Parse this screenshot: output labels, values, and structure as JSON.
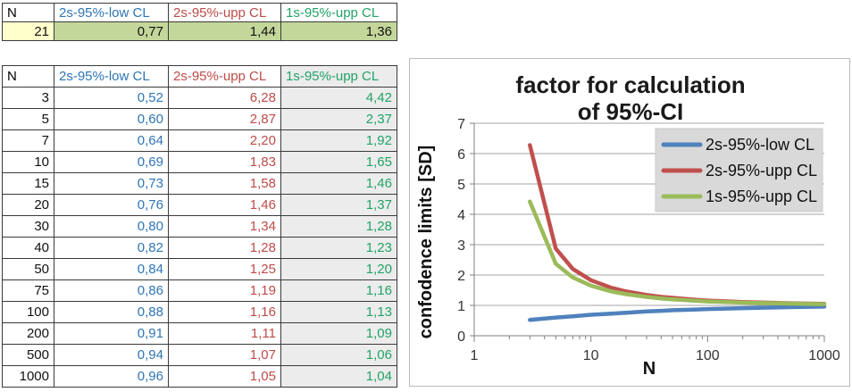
{
  "colors": {
    "blue_text": "#2E75B6",
    "red_text": "#BE4B48",
    "green_text": "#21A366",
    "yellow_cell": "#FFFFCC",
    "olive_cell": "#C4D79B",
    "gray_cell": "#ECECEC",
    "legend_bg": "#D9D9D9",
    "gridline": "#A6A6A6",
    "axis": "#808080"
  },
  "top_table": {
    "headers": [
      "N",
      "2s-95%-low CL",
      "2s-95%-upp CL",
      "1s-95%-upp CL"
    ],
    "row": [
      "21",
      "0,77",
      "1,44",
      "1,36"
    ]
  },
  "main_table": {
    "headers": [
      "N",
      "2s-95%-low CL",
      "2s-95%-upp CL",
      "1s-95%-upp CL"
    ],
    "rows": [
      [
        "3",
        "0,52",
        "6,28",
        "4,42"
      ],
      [
        "5",
        "0,60",
        "2,87",
        "2,37"
      ],
      [
        "7",
        "0,64",
        "2,20",
        "1,92"
      ],
      [
        "10",
        "0,69",
        "1,83",
        "1,65"
      ],
      [
        "15",
        "0,73",
        "1,58",
        "1,46"
      ],
      [
        "20",
        "0,76",
        "1,46",
        "1,37"
      ],
      [
        "30",
        "0,80",
        "1,34",
        "1,28"
      ],
      [
        "40",
        "0,82",
        "1,28",
        "1,23"
      ],
      [
        "50",
        "0,84",
        "1,25",
        "1,20"
      ],
      [
        "75",
        "0,86",
        "1,19",
        "1,16"
      ],
      [
        "100",
        "0,88",
        "1,16",
        "1,13"
      ],
      [
        "200",
        "0,91",
        "1,11",
        "1,09"
      ],
      [
        "500",
        "0,94",
        "1,07",
        "1,06"
      ],
      [
        "1000",
        "0,96",
        "1,05",
        "1,04"
      ]
    ]
  },
  "chart_data": {
    "type": "line",
    "title_line1": "factor for calculation",
    "title_line2": "of 95%-CI",
    "xlabel": "N",
    "ylabel": "confodence limits [SD]",
    "x_scale": "log",
    "xlim": [
      1,
      1000
    ],
    "ylim": [
      0,
      7
    ],
    "x_ticks": [
      1,
      10,
      100,
      1000
    ],
    "y_ticks": [
      0,
      1,
      2,
      3,
      4,
      5,
      6,
      7
    ],
    "grid": true,
    "legend_position": "upper right",
    "x": [
      3,
      5,
      7,
      10,
      15,
      20,
      30,
      40,
      50,
      75,
      100,
      200,
      500,
      1000
    ],
    "series": [
      {
        "name": "2s-95%-low CL",
        "color": "#4F81BD",
        "values": [
          0.52,
          0.6,
          0.64,
          0.69,
          0.73,
          0.76,
          0.8,
          0.82,
          0.84,
          0.86,
          0.88,
          0.91,
          0.94,
          0.96
        ]
      },
      {
        "name": "2s-95%-upp CL",
        "color": "#C0504D",
        "values": [
          6.28,
          2.87,
          2.2,
          1.83,
          1.58,
          1.46,
          1.34,
          1.28,
          1.25,
          1.19,
          1.16,
          1.11,
          1.07,
          1.05
        ]
      },
      {
        "name": "1s-95%-upp CL",
        "color": "#9BBB59",
        "values": [
          4.42,
          2.37,
          1.92,
          1.65,
          1.46,
          1.37,
          1.28,
          1.23,
          1.2,
          1.16,
          1.13,
          1.09,
          1.06,
          1.04
        ]
      }
    ]
  }
}
